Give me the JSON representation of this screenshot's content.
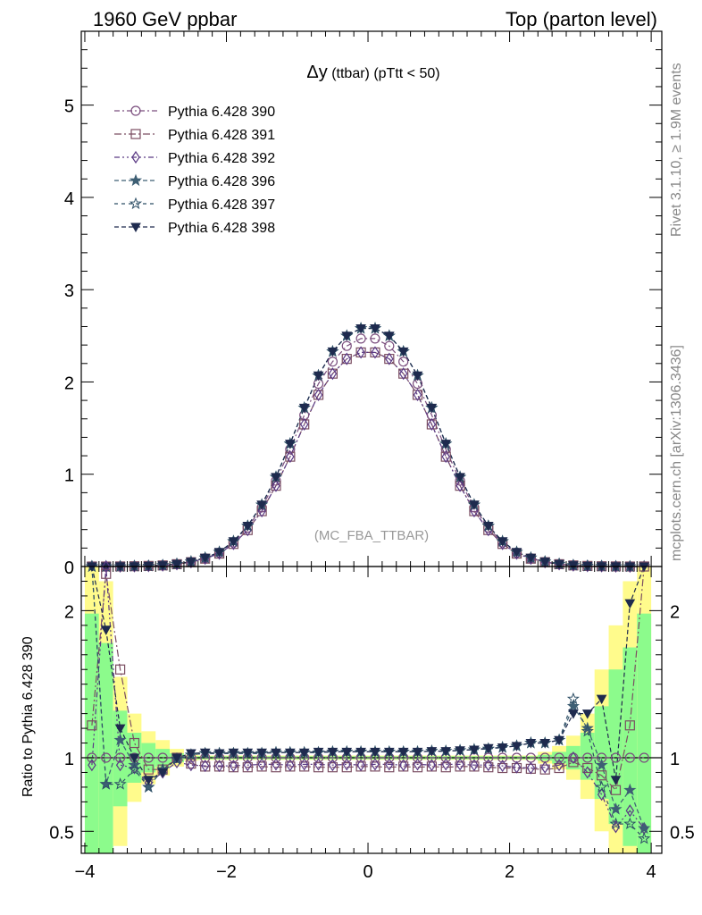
{
  "header": {
    "left": "1960 GeV ppbar",
    "right": "Top (parton level)"
  },
  "side_labels": {
    "rivet": "Rivet 3.1.10, ≥ 1.9M events",
    "mcplots": "mcplots.cern.ch [arXiv:1306.3436]"
  },
  "watermark": "(MC_FBA_TTBAR)",
  "ratio_ylabel": "Ratio to Pythia 6.428 390",
  "chart_data": [
    {
      "type": "line",
      "title": "Δy (ttbar) (pTtt < 50)",
      "title_parts": {
        "symbol": "Δy",
        "rest": " (ttbar) (pTtt < 50)"
      },
      "xlim": [
        -4.05,
        4.15
      ],
      "ylim": [
        0,
        5.8
      ],
      "yticks": [
        0,
        1,
        2,
        3,
        4,
        5
      ],
      "ytick_labels": [
        "0",
        "1",
        "2",
        "3",
        "4",
        "5"
      ],
      "x": [
        -3.9,
        -3.7,
        -3.5,
        -3.3,
        -3.1,
        -2.9,
        -2.7,
        -2.5,
        -2.3,
        -2.1,
        -1.9,
        -1.7,
        -1.5,
        -1.3,
        -1.1,
        -0.9,
        -0.7,
        -0.5,
        -0.3,
        -0.1,
        0.1,
        0.3,
        0.5,
        0.7,
        0.9,
        1.1,
        1.3,
        1.5,
        1.7,
        1.9,
        2.1,
        2.3,
        2.5,
        2.7,
        2.9,
        3.1,
        3.3,
        3.5,
        3.7,
        3.9
      ],
      "series": [
        {
          "name": "Pythia 6.428 390",
          "marker": "circle-open",
          "color": "#7b4e7e",
          "values": [
            0.0,
            0.0,
            0.001,
            0.003,
            0.006,
            0.013,
            0.026,
            0.05,
            0.09,
            0.15,
            0.26,
            0.42,
            0.64,
            0.93,
            1.27,
            1.64,
            1.98,
            2.22,
            2.39,
            2.47,
            2.47,
            2.39,
            2.22,
            1.98,
            1.64,
            1.27,
            0.93,
            0.64,
            0.42,
            0.26,
            0.15,
            0.09,
            0.05,
            0.026,
            0.013,
            0.006,
            0.003,
            0.001,
            0.0,
            0.0
          ]
        },
        {
          "name": "Pythia 6.428 391",
          "marker": "square-open",
          "color": "#7b4e62",
          "values": [
            0.0,
            0.0,
            0.001,
            0.003,
            0.006,
            0.012,
            0.025,
            0.047,
            0.085,
            0.14,
            0.245,
            0.395,
            0.6,
            0.875,
            1.19,
            1.54,
            1.86,
            2.09,
            2.25,
            2.32,
            2.32,
            2.25,
            2.09,
            1.86,
            1.54,
            1.19,
            0.875,
            0.6,
            0.395,
            0.245,
            0.14,
            0.085,
            0.047,
            0.025,
            0.012,
            0.006,
            0.003,
            0.001,
            0.0,
            0.0
          ]
        },
        {
          "name": "Pythia 6.428 392",
          "marker": "diamond-open",
          "color": "#5b3a85",
          "values": [
            0.0,
            0.0,
            0.001,
            0.003,
            0.006,
            0.012,
            0.025,
            0.047,
            0.085,
            0.14,
            0.245,
            0.395,
            0.6,
            0.875,
            1.19,
            1.54,
            1.86,
            2.09,
            2.25,
            2.32,
            2.32,
            2.25,
            2.09,
            1.86,
            1.54,
            1.19,
            0.875,
            0.6,
            0.395,
            0.245,
            0.14,
            0.085,
            0.047,
            0.025,
            0.012,
            0.006,
            0.003,
            0.001,
            0.0,
            0.0
          ]
        },
        {
          "name": "Pythia 6.428 396",
          "marker": "star-filled",
          "color": "#3e5f74",
          "values": [
            0.0,
            0.0,
            0.001,
            0.003,
            0.006,
            0.013,
            0.027,
            0.052,
            0.094,
            0.157,
            0.273,
            0.44,
            0.67,
            0.97,
            1.33,
            1.72,
            2.07,
            2.33,
            2.5,
            2.58,
            2.58,
            2.5,
            2.33,
            2.07,
            1.72,
            1.33,
            0.97,
            0.67,
            0.44,
            0.273,
            0.157,
            0.094,
            0.052,
            0.027,
            0.013,
            0.006,
            0.003,
            0.001,
            0.0,
            0.0
          ]
        },
        {
          "name": "Pythia 6.428 397",
          "marker": "star-open",
          "color": "#2e4f66",
          "values": [
            0.0,
            0.0,
            0.001,
            0.003,
            0.006,
            0.013,
            0.027,
            0.052,
            0.094,
            0.157,
            0.273,
            0.44,
            0.67,
            0.97,
            1.33,
            1.72,
            2.07,
            2.33,
            2.5,
            2.58,
            2.58,
            2.5,
            2.33,
            2.07,
            1.72,
            1.33,
            0.97,
            0.67,
            0.44,
            0.273,
            0.157,
            0.094,
            0.052,
            0.027,
            0.013,
            0.006,
            0.003,
            0.001,
            0.0,
            0.0
          ]
        },
        {
          "name": "Pythia 6.428 398",
          "marker": "triangle-down-filled",
          "color": "#1e2a4e",
          "values": [
            0.0,
            0.0,
            0.001,
            0.003,
            0.006,
            0.013,
            0.027,
            0.052,
            0.094,
            0.157,
            0.273,
            0.44,
            0.67,
            0.97,
            1.33,
            1.72,
            2.07,
            2.33,
            2.5,
            2.58,
            2.58,
            2.5,
            2.33,
            2.07,
            1.72,
            1.33,
            0.97,
            0.67,
            0.44,
            0.273,
            0.157,
            0.094,
            0.052,
            0.027,
            0.013,
            0.006,
            0.003,
            0.001,
            0.0,
            0.0
          ]
        }
      ]
    },
    {
      "type": "line",
      "xlim": [
        -4.05,
        4.15
      ],
      "ylim": [
        0.35,
        2.3
      ],
      "xticks": [
        -4,
        -2,
        0,
        2,
        4
      ],
      "xtick_labels": [
        "−4",
        "−2",
        "0",
        "2",
        "4"
      ],
      "yticks": [
        0.5,
        1,
        2
      ],
      "ytick_labels": [
        "0.5",
        "1",
        "2"
      ],
      "reference_line": 1,
      "band_colors": {
        "inner": "#8cfb8c",
        "outer": "#fffb8c"
      },
      "bands": {
        "x_edges": [
          -4.0,
          -3.8,
          -3.6,
          -3.4,
          -3.2,
          -3.0,
          -2.8,
          -2.6,
          -2.4,
          2.4,
          2.6,
          2.8,
          3.0,
          3.2,
          3.4,
          3.6,
          3.8,
          4.0
        ],
        "inner_low": [
          0.35,
          0.35,
          0.67,
          0.83,
          0.9,
          0.94,
          0.97,
          0.99,
          0.99,
          0.98,
          0.96,
          0.92,
          0.85,
          0.72,
          0.55,
          0.4,
          0.35
        ],
        "inner_high": [
          1.98,
          1.78,
          1.32,
          1.17,
          1.1,
          1.06,
          1.03,
          1.01,
          1.01,
          1.02,
          1.04,
          1.08,
          1.17,
          1.35,
          1.6,
          1.75,
          1.98
        ],
        "outer_low": [
          0.35,
          0.35,
          0.4,
          0.7,
          0.82,
          0.88,
          0.94,
          0.98,
          0.985,
          0.96,
          0.92,
          0.85,
          0.72,
          0.5,
          0.35,
          0.35,
          0.35
        ],
        "outer_high": [
          2.3,
          2.2,
          1.55,
          1.3,
          1.18,
          1.12,
          1.06,
          1.02,
          1.015,
          1.04,
          1.08,
          1.15,
          1.3,
          1.6,
          1.9,
          2.2,
          2.3
        ]
      },
      "x": [
        -3.9,
        -3.7,
        -3.5,
        -3.3,
        -3.1,
        -2.9,
        -2.7,
        -2.5,
        -2.3,
        -2.1,
        -1.9,
        -1.7,
        -1.5,
        -1.3,
        -1.1,
        -0.9,
        -0.7,
        -0.5,
        -0.3,
        -0.1,
        0.1,
        0.3,
        0.5,
        0.7,
        0.9,
        1.1,
        1.3,
        1.5,
        1.7,
        1.9,
        2.1,
        2.3,
        2.5,
        2.7,
        2.9,
        3.1,
        3.3,
        3.5,
        3.7,
        3.9
      ],
      "series": [
        {
          "name": "Pythia 6.428 390",
          "marker": "circle-open",
          "color": "#7b4e7e",
          "values": [
            1,
            1,
            1,
            1,
            1,
            1,
            1,
            1,
            1,
            1,
            1,
            1,
            1,
            1,
            1,
            1,
            1,
            1,
            1,
            1,
            1,
            1,
            1,
            1,
            1,
            1,
            1,
            1,
            1,
            1,
            1,
            1,
            1,
            1,
            1,
            1,
            1,
            1,
            1,
            1
          ]
        },
        {
          "name": "Pythia 6.428 391",
          "marker": "square-open",
          "color": "#7b4e62",
          "values": [
            1.22,
            2.25,
            1.6,
            1.1,
            0.92,
            0.92,
            1.0,
            0.96,
            0.94,
            0.94,
            0.935,
            0.935,
            0.94,
            0.935,
            0.94,
            0.94,
            0.935,
            0.935,
            0.935,
            0.94,
            0.94,
            0.935,
            0.94,
            0.935,
            0.94,
            0.935,
            0.94,
            0.94,
            0.935,
            0.93,
            0.93,
            0.925,
            0.92,
            0.93,
            0.97,
            0.93,
            0.88,
            0.78,
            1.22,
            2.3
          ]
        },
        {
          "name": "Pythia 6.428 392",
          "marker": "diamond-open",
          "color": "#5b3a85",
          "values": [
            0.95,
            2.3,
            0.95,
            0.93,
            0.83,
            0.9,
            0.97,
            0.95,
            0.945,
            0.945,
            0.945,
            0.95,
            0.955,
            0.955,
            0.95,
            0.955,
            0.955,
            0.95,
            0.955,
            0.95,
            0.955,
            0.955,
            0.95,
            0.955,
            0.95,
            0.955,
            0.955,
            0.95,
            0.95,
            0.945,
            0.935,
            0.93,
            0.935,
            0.95,
            1.0,
            0.9,
            0.75,
            0.53,
            0.64,
            0.52
          ]
        },
        {
          "name": "Pythia 6.428 396",
          "marker": "star-filled",
          "color": "#3e5f74",
          "values": [
            2.3,
            0.82,
            1.12,
            0.95,
            0.8,
            0.92,
            0.99,
            1.02,
            1.03,
            1.03,
            1.03,
            1.03,
            1.03,
            1.035,
            1.035,
            1.035,
            1.035,
            1.04,
            1.04,
            1.04,
            1.04,
            1.04,
            1.04,
            1.04,
            1.045,
            1.045,
            1.05,
            1.055,
            1.06,
            1.07,
            1.08,
            1.1,
            1.1,
            1.12,
            1.35,
            1.2,
            0.95,
            0.65,
            0.78,
            0.52
          ]
        },
        {
          "name": "Pythia 6.428 397",
          "marker": "star-open",
          "color": "#2e4f66",
          "values": [
            2.3,
            0.82,
            0.82,
            0.92,
            0.8,
            0.92,
            0.99,
            1.02,
            1.03,
            1.03,
            1.03,
            1.03,
            1.03,
            1.035,
            1.035,
            1.035,
            1.035,
            1.04,
            1.04,
            1.04,
            1.04,
            1.04,
            1.04,
            1.04,
            1.045,
            1.045,
            1.05,
            1.055,
            1.06,
            1.07,
            1.08,
            1.1,
            1.1,
            1.12,
            1.4,
            1.18,
            0.8,
            0.55,
            0.55,
            0.45
          ]
        },
        {
          "name": "Pythia 6.428 398",
          "marker": "triangle-down-filled",
          "color": "#1e2a4e",
          "values": [
            2.3,
            1.87,
            1.2,
            1.0,
            0.85,
            0.9,
            1.0,
            1.03,
            1.035,
            1.03,
            1.035,
            1.035,
            1.035,
            1.035,
            1.035,
            1.035,
            1.04,
            1.04,
            1.04,
            1.04,
            1.04,
            1.04,
            1.04,
            1.04,
            1.045,
            1.045,
            1.05,
            1.055,
            1.065,
            1.07,
            1.08,
            1.1,
            1.1,
            1.12,
            1.3,
            1.3,
            1.4,
            0.85,
            2.05,
            2.3
          ]
        }
      ]
    }
  ]
}
